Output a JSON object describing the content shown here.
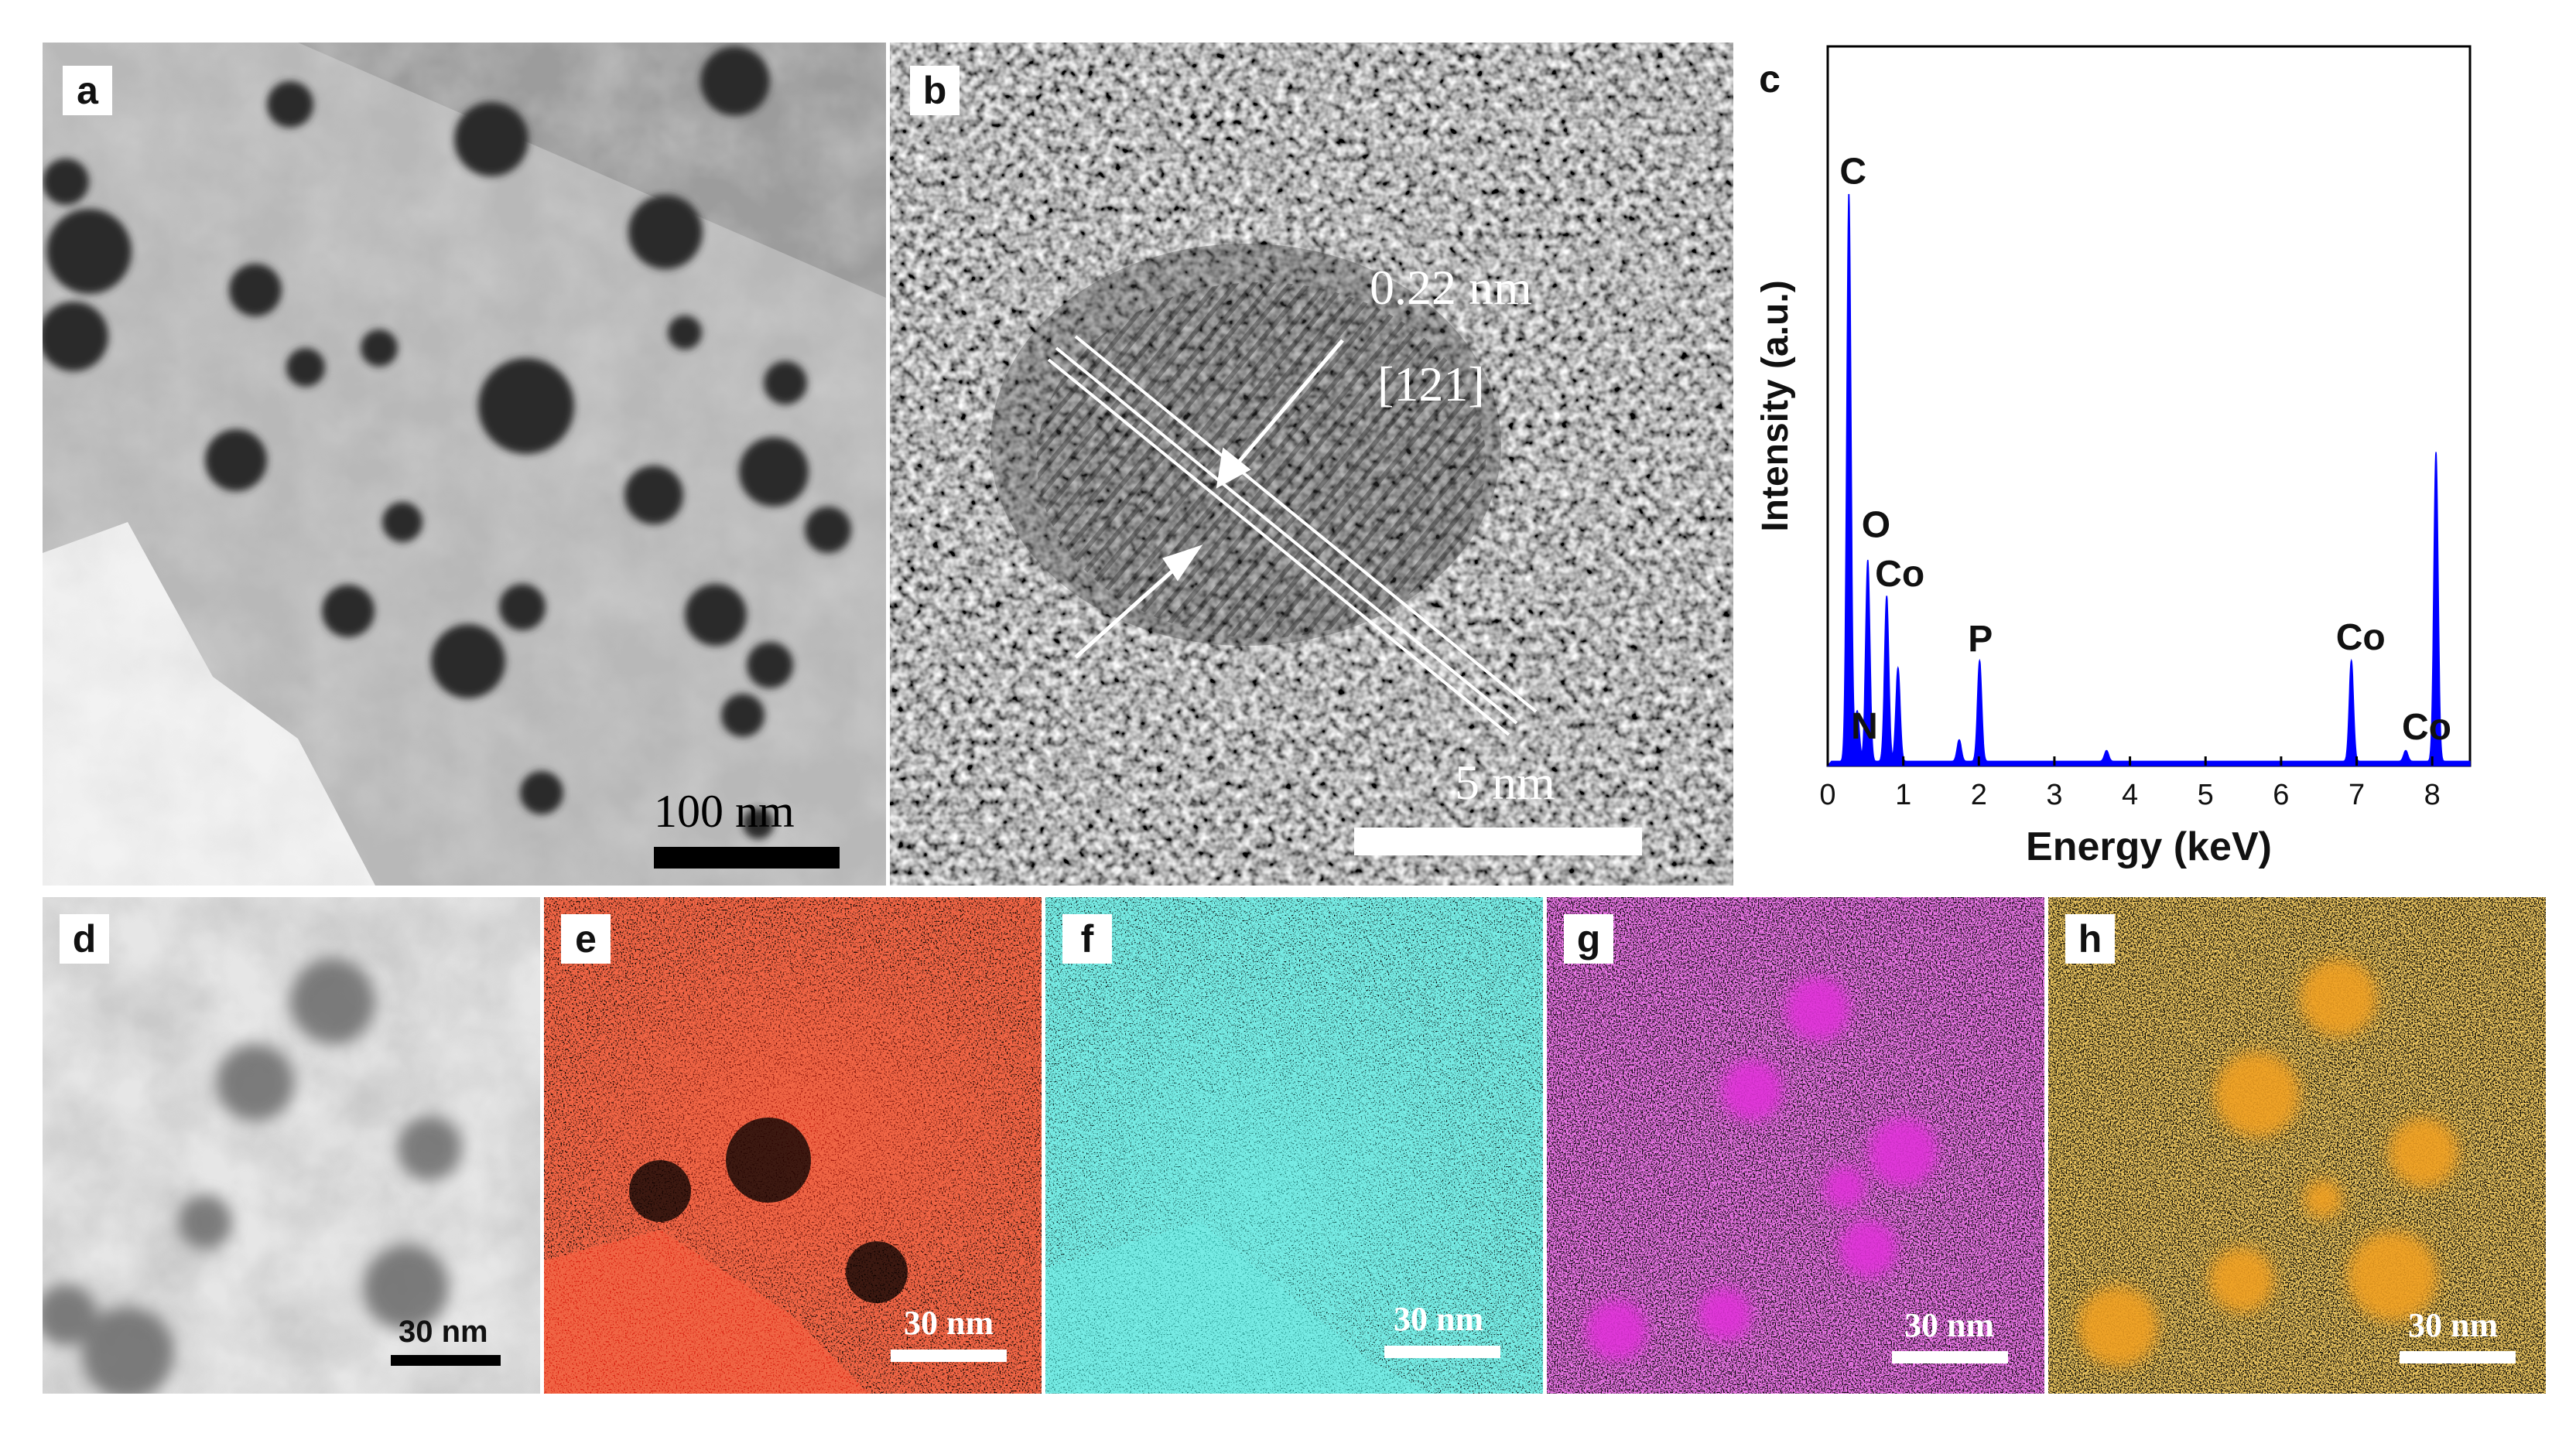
{
  "panels": {
    "a": {
      "label": "a",
      "scale_bar": "100 nm"
    },
    "b": {
      "label": "b",
      "d_spacing": "0.22 nm",
      "plane": "[121]",
      "scale_bar": "5 nm"
    },
    "c": {
      "label": "c"
    },
    "d": {
      "label": "d",
      "scale_bar": "30 nm"
    },
    "e": {
      "label": "e",
      "scale_bar": "30 nm",
      "color": "#e0200f"
    },
    "f": {
      "label": "f",
      "scale_bar": "30 nm",
      "color": "#2fd6c8"
    },
    "g": {
      "label": "g",
      "scale_bar": "30 nm",
      "color": "#e030d8"
    },
    "h": {
      "label": "h",
      "scale_bar": "30 nm",
      "color": "#f0a020"
    }
  },
  "chart_data": {
    "type": "line",
    "xlabel": "Energy (keV)",
    "ylabel": "Intensity (a.u.)",
    "xlim": [
      0,
      8.5
    ],
    "x_ticks": [
      "0",
      "1",
      "2",
      "3",
      "4",
      "5",
      "6",
      "7",
      "8"
    ],
    "series_color": "#0000ff",
    "peaks": [
      {
        "energy": 0.28,
        "relative_intensity": 0.79,
        "label": "C"
      },
      {
        "energy": 0.39,
        "relative_intensity": 0.07,
        "label": "N"
      },
      {
        "energy": 0.53,
        "relative_intensity": 0.28,
        "label": "O"
      },
      {
        "energy": 0.78,
        "relative_intensity": 0.23,
        "label": "Co"
      },
      {
        "energy": 0.93,
        "relative_intensity": 0.13,
        "label": ""
      },
      {
        "energy": 1.74,
        "relative_intensity": 0.03,
        "label": ""
      },
      {
        "energy": 2.01,
        "relative_intensity": 0.14,
        "label": "P"
      },
      {
        "energy": 3.69,
        "relative_intensity": 0.015,
        "label": ""
      },
      {
        "energy": 6.93,
        "relative_intensity": 0.14,
        "label": "Co"
      },
      {
        "energy": 7.65,
        "relative_intensity": 0.015,
        "label": "Co"
      },
      {
        "energy": 8.05,
        "relative_intensity": 0.43,
        "label": ""
      }
    ]
  }
}
